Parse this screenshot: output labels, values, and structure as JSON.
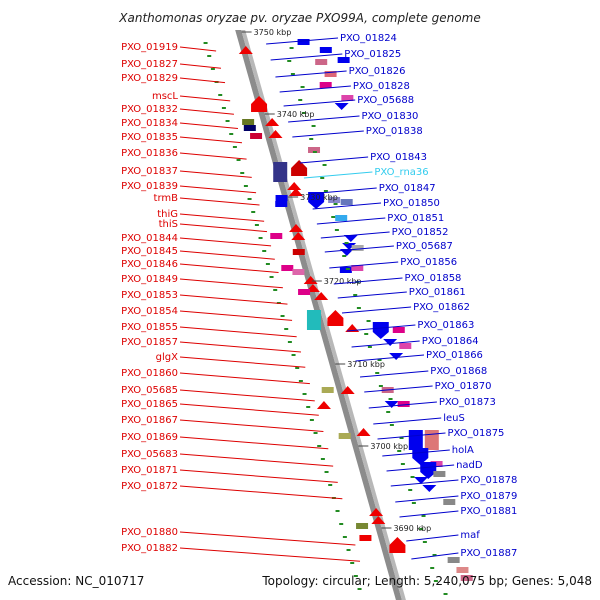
{
  "title": "Xanthomonas oryzae pv. oryzae PXO99A, complete genome",
  "footer": {
    "accession": "Accession: NC_010717",
    "summary": "Topology: circular; Length: 5,240,075 bp; Genes: 5,048"
  },
  "colors": {
    "forward_label": "#dd0000",
    "reverse_label": "#0000cc",
    "rna_label": "#33ccee",
    "backbone": "#8c8c8c",
    "tick": "#228b22"
  },
  "scale_marks": [
    "3750 kbp",
    "3740 kbp",
    "3730 kbp",
    "3720 kbp",
    "3710 kbp",
    "3700 kbp",
    "3690 kbp"
  ],
  "left_labels": [
    "PXO_01919",
    "PXO_01827",
    "PXO_01829",
    "mscL",
    "PXO_01832",
    "PXO_01834",
    "PXO_01835",
    "PXO_01836",
    "PXO_01837",
    "PXO_01839",
    "trmB",
    "thiG",
    "thiS",
    "PXO_01844",
    "PXO_01845",
    "PXO_01846",
    "PXO_01849",
    "PXO_01853",
    "PXO_01854",
    "PXO_01855",
    "PXO_01857",
    "glgX",
    "PXO_01860",
    "PXO_05685",
    "PXO_01865",
    "PXO_01867",
    "PXO_01869",
    "PXO_05683",
    "PXO_01871",
    "PXO_01872",
    "PXO_01880",
    "PXO_01882"
  ],
  "right_labels": [
    "PXO_01824",
    "PXO_01825",
    "PXO_01826",
    "PXO_01828",
    "PXO_05688",
    "PXO_01830",
    "PXO_01838",
    "PXO_01843",
    "PXO_rna36",
    "PXO_01847",
    "PXO_01850",
    "PXO_01851",
    "PXO_01852",
    "PXO_05687",
    "PXO_01856",
    "PXO_01858",
    "PXO_01861",
    "PXO_01862",
    "PXO_01863",
    "PXO_01864",
    "PXO_01866",
    "PXO_01868",
    "PXO_01870",
    "PXO_01873",
    "leuS",
    "PXO_01875",
    "holA",
    "nadD",
    "PXO_01878",
    "PXO_01879",
    "PXO_01881",
    "maf",
    "PXO_01887"
  ]
}
